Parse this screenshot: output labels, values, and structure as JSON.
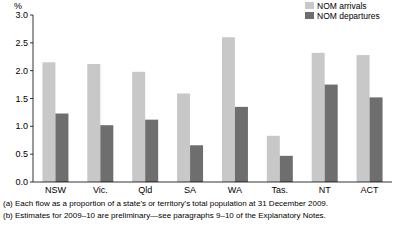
{
  "chart_data": {
    "type": "bar",
    "y_label": "%",
    "categories": [
      "NSW",
      "Vic.",
      "Qld",
      "SA",
      "WA",
      "Tas.",
      "NT",
      "ACT"
    ],
    "series": [
      {
        "name": "NOM arrivals",
        "color": "#c8c8c8",
        "values": [
          2.15,
          2.12,
          1.98,
          1.59,
          2.6,
          0.83,
          2.32,
          2.28
        ]
      },
      {
        "name": "NOM departures",
        "color": "#6e6e6e",
        "values": [
          1.23,
          1.02,
          1.12,
          0.66,
          1.35,
          0.47,
          1.75,
          1.52
        ]
      }
    ],
    "ylim": [
      0,
      3
    ],
    "yticks": [
      {
        "value": 0,
        "label": "0.0"
      },
      0.5,
      {
        "value": 1,
        "label": "1.0"
      },
      1.5,
      {
        "value": 2,
        "label": "2.0"
      },
      2.5,
      {
        "value": 3,
        "label": "3.0"
      }
    ],
    "grid": false,
    "legend": "upper right",
    "footnotes": [
      "(a) Each flow as a proportion of a state's or territory's total population at 31 December 2009.",
      "(b) Estimates for 2009–10 are preliminary—see paragraphs 9–10 of the Explanatory Notes."
    ]
  }
}
